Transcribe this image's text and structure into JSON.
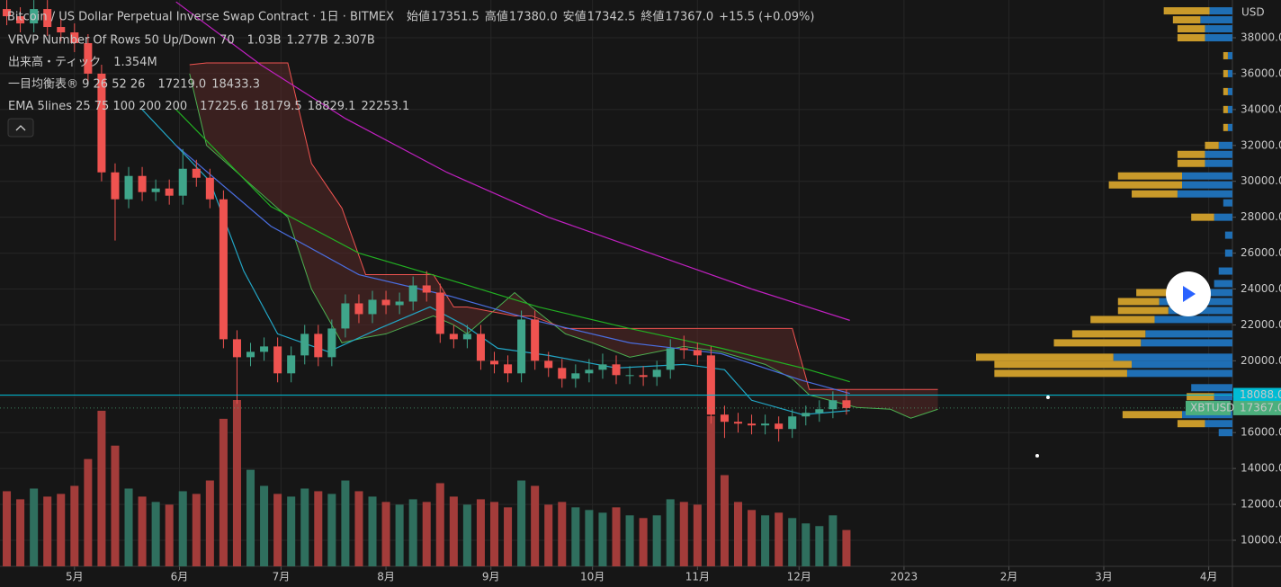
{
  "chart_data": {
    "type": "candlestick",
    "title": "Bitcoin / US Dollar Perpetual Inverse Swap Contract · 1日 · BITMEX",
    "ohlc_header": {
      "names": [
        "始値",
        "高値",
        "安値",
        "終値"
      ],
      "values": [
        17351.5,
        17380,
        17342.5,
        17367
      ],
      "value_labels": [
        "17351.5",
        "17380.0",
        "17342.5",
        "17367.0"
      ],
      "change": "+15.5 (+0.09%)",
      "color": "#4caf7d"
    },
    "indicators": [
      {
        "name": "VRVP Number Of Rows 50 Up/Down 70",
        "values": [
          1.03,
          1.277,
          2.307
        ],
        "value_labels": [
          "1.03B",
          "1.277B",
          "2.307B"
        ],
        "colors": [
          "#2f8ae0",
          "#e0b23a",
          "#555555"
        ]
      },
      {
        "name": "出来高・ティック",
        "values": [
          1.354
        ],
        "value_labels": [
          "1.354M"
        ],
        "colors": [
          "#4caf7d"
        ]
      },
      {
        "name": "一目均衡表® 9 26 52 26",
        "values": [
          17219,
          18433.3
        ],
        "value_labels": [
          "17219.0",
          "18433.3"
        ],
        "colors": [
          "#4caf50",
          "#ef5350"
        ]
      },
      {
        "name": "EMA 5lines 25 75 100 200 200",
        "values": [
          17225.6,
          18179.5,
          18829.1,
          22253.1
        ],
        "colors": [
          "#22a6c6",
          "#4a6ee0",
          "#22d022",
          "#d020d0"
        ]
      }
    ],
    "y_unit": "USD",
    "xlim": [
      -22,
      342
    ],
    "xticks": [
      {
        "value": 0,
        "label": "5月"
      },
      {
        "value": 31,
        "label": "6月"
      },
      {
        "value": 61,
        "label": "7月"
      },
      {
        "value": 92,
        "label": "8月"
      },
      {
        "value": 123,
        "label": "9月"
      },
      {
        "value": 153,
        "label": "10月"
      },
      {
        "value": 184,
        "label": "11月"
      },
      {
        "value": 214,
        "label": "12月"
      },
      {
        "value": 245,
        "label": "2023"
      },
      {
        "value": 276,
        "label": "2月"
      },
      {
        "value": 304,
        "label": "3月"
      },
      {
        "value": 335,
        "label": "4月"
      }
    ],
    "ylim": [
      8547,
      40104
    ],
    "yticks": [
      {
        "value": 10000,
        "label": "10000.0"
      },
      {
        "value": 12000,
        "label": "12000.0"
      },
      {
        "value": 14000,
        "label": "14000.0"
      },
      {
        "value": 16000,
        "label": "16000.0"
      },
      {
        "value": 18000,
        "label": "18000.0"
      },
      {
        "value": 20000,
        "label": "20000.0"
      },
      {
        "value": 22000,
        "label": "22000.0"
      },
      {
        "value": 24000,
        "label": "24000.0"
      },
      {
        "value": 26000,
        "label": "26000.0"
      },
      {
        "value": 28000,
        "label": "28000.0"
      },
      {
        "value": 30000,
        "label": "30000.0"
      },
      {
        "value": 32000,
        "label": "32000.0"
      },
      {
        "value": 34000,
        "label": "34000.0"
      },
      {
        "value": 36000,
        "label": "36000.0"
      },
      {
        "value": 38000,
        "label": "38000.0"
      }
    ],
    "grid": true,
    "candles": {
      "x": [
        -20,
        -16,
        -12,
        -8,
        -4,
        0,
        4,
        8,
        12,
        16,
        20,
        24,
        28,
        32,
        36,
        40,
        44,
        48,
        52,
        56,
        60,
        64,
        68,
        72,
        76,
        80,
        84,
        88,
        92,
        96,
        100,
        104,
        108,
        112,
        116,
        120,
        124,
        128,
        132,
        136,
        140,
        144,
        148,
        152,
        156,
        160,
        164,
        168,
        172,
        176,
        180,
        184,
        188,
        192,
        196,
        200,
        204,
        208,
        212,
        216,
        220,
        224,
        228
      ],
      "open": [
        39600,
        39200,
        38800,
        39600,
        38600,
        38300,
        37700,
        36000,
        30500,
        29000,
        30300,
        29400,
        29600,
        29200,
        30700,
        30200,
        29000,
        21200,
        20200,
        20500,
        20800,
        19300,
        20300,
        21500,
        20200,
        21800,
        23200,
        22600,
        23400,
        23100,
        23300,
        24200,
        23800,
        21500,
        21200,
        21500,
        20000,
        19800,
        19300,
        22300,
        20000,
        19600,
        19000,
        19300,
        19500,
        19800,
        19200,
        19200,
        19100,
        19500,
        20700,
        20600,
        20300,
        17000,
        16600,
        16500,
        16400,
        16500,
        16200,
        16900,
        17100,
        17300,
        17800
      ],
      "high": [
        40100,
        39700,
        40100,
        40100,
        39100,
        38800,
        38200,
        36500,
        31000,
        30800,
        30800,
        30100,
        30100,
        31800,
        31200,
        30700,
        29500,
        21700,
        21000,
        21300,
        21300,
        20800,
        22000,
        22000,
        22300,
        23700,
        23700,
        23900,
        23900,
        23800,
        24700,
        25000,
        24300,
        22000,
        22000,
        22000,
        20500,
        20300,
        22800,
        22800,
        20500,
        20100,
        19800,
        20100,
        20400,
        20300,
        19700,
        19700,
        20000,
        21200,
        21400,
        21000,
        20800,
        17500,
        17100,
        17000,
        17000,
        16900,
        17300,
        17500,
        17800,
        18300,
        18400
      ],
      "low": [
        38700,
        38300,
        38300,
        38100,
        37800,
        37200,
        35500,
        30000,
        26700,
        28500,
        28900,
        28900,
        28700,
        28700,
        29700,
        28500,
        20700,
        17600,
        19700,
        20000,
        18800,
        18800,
        19800,
        19700,
        19700,
        21300,
        22100,
        22100,
        22600,
        22600,
        22800,
        23300,
        21000,
        20700,
        20700,
        19500,
        19300,
        18800,
        18800,
        19500,
        19100,
        18500,
        18500,
        18800,
        19000,
        18700,
        18700,
        18600,
        18600,
        19000,
        20100,
        19800,
        16500,
        15700,
        16000,
        15900,
        15900,
        15500,
        15700,
        16400,
        16600,
        16800,
        17000
      ],
      "close": [
        39200,
        38800,
        39600,
        38600,
        38300,
        37700,
        36000,
        30500,
        29000,
        30300,
        29400,
        29600,
        29200,
        30700,
        30200,
        29000,
        21200,
        20200,
        20500,
        20800,
        19300,
        20300,
        21500,
        20200,
        21800,
        23200,
        22600,
        23400,
        23100,
        23300,
        24200,
        23800,
        21500,
        21200,
        21500,
        20000,
        19800,
        19300,
        22300,
        20000,
        19600,
        19000,
        19300,
        19500,
        19800,
        19200,
        19200,
        19100,
        19500,
        20700,
        20600,
        20300,
        17000,
        16600,
        16500,
        16400,
        16500,
        16200,
        16900,
        17100,
        17300,
        17800,
        17367
      ],
      "up_color": "#3fa58a",
      "down_color": "#ef5350"
    },
    "volume": {
      "values": [
        2.8,
        2.5,
        2.9,
        2.6,
        2.7,
        3.0,
        4.0,
        5.8,
        4.5,
        2.9,
        2.6,
        2.4,
        2.3,
        2.8,
        2.7,
        3.2,
        5.5,
        6.2,
        3.6,
        3.0,
        2.7,
        2.6,
        2.9,
        2.8,
        2.7,
        3.2,
        2.8,
        2.6,
        2.4,
        2.3,
        2.5,
        2.4,
        3.1,
        2.6,
        2.3,
        2.5,
        2.4,
        2.2,
        3.2,
        3.0,
        2.3,
        2.4,
        2.2,
        2.1,
        2.0,
        2.2,
        1.9,
        1.8,
        1.9,
        2.5,
        2.4,
        2.3,
        5.6,
        3.4,
        2.4,
        2.1,
        1.9,
        2.0,
        1.8,
        1.6,
        1.5,
        1.9,
        1.354
      ],
      "up_color": "#2f6f5e",
      "down_color": "#a33c3a"
    },
    "ema": [
      {
        "color": "#22a6c6",
        "x": [
          20,
          40,
          50,
          60,
          75,
          90,
          105,
          115,
          125,
          140,
          160,
          180,
          192,
          200,
          215,
          229
        ],
        "values": [
          34000,
          30000,
          25000,
          21500,
          20500,
          21800,
          23000,
          22000,
          20700,
          20300,
          19600,
          19800,
          19500,
          17800,
          17000,
          17225.6
        ]
      },
      {
        "color": "#4a6ee0",
        "x": [
          30,
          58,
          84,
          111,
          137,
          164,
          191,
          215,
          229
        ],
        "values": [
          32000,
          27500,
          24800,
          23600,
          22200,
          21000,
          20400,
          18900,
          18179.5
        ]
      },
      {
        "color": "#22b022",
        "x": [
          30,
          58,
          84,
          111,
          137,
          164,
          191,
          215,
          229
        ],
        "values": [
          34000,
          28600,
          26000,
          24500,
          23000,
          21800,
          20700,
          19600,
          18829.1
        ]
      },
      {
        "color": "#c020c0",
        "x": [
          30,
          55,
          80,
          110,
          140,
          170,
          200,
          229
        ],
        "values": [
          40000,
          36500,
          33500,
          30500,
          28000,
          26000,
          24000,
          22253.1
        ]
      }
    ],
    "ichimoku": {
      "x": [
        34,
        39,
        63,
        70,
        79,
        86,
        92,
        106,
        112,
        116,
        130,
        135,
        145,
        153,
        164,
        180,
        191,
        204,
        212,
        217,
        231,
        241,
        247,
        255
      ],
      "span_a": [
        36000,
        32000,
        28000,
        24000,
        21000,
        21300,
        21500,
        22500,
        22000,
        21500,
        23800,
        23000,
        21500,
        21000,
        20200,
        20800,
        20500,
        19800,
        19000,
        18100,
        17400,
        17300,
        16800,
        17300
      ],
      "span_b": [
        36500,
        36600,
        36600,
        31000,
        28500,
        24800,
        24800,
        24800,
        23000,
        23000,
        22500,
        22500,
        21800,
        21800,
        21800,
        21800,
        21800,
        21800,
        21800,
        18400,
        18400,
        18400,
        18400,
        18400
      ],
      "color_a": "#4caf50",
      "color_b": "#ef5350",
      "fill": "#5a2a28"
    },
    "volume_profile": {
      "prices": [
        16000,
        16500,
        17000,
        18000,
        18500,
        19300,
        19800,
        20200,
        21000,
        21500,
        22300,
        22800,
        23300,
        23800,
        24300,
        25000,
        26000,
        27000,
        28000,
        28800,
        29300,
        29800,
        30300,
        31000,
        31500,
        32000,
        33000,
        34000,
        35000,
        36000,
        37000,
        38000,
        38500,
        39000,
        39500
      ],
      "up": [
        15,
        30,
        55,
        20,
        45,
        115,
        110,
        130,
        100,
        95,
        85,
        70,
        80,
        65,
        20,
        15,
        8,
        8,
        20,
        10,
        60,
        55,
        55,
        30,
        30,
        15,
        5,
        5,
        5,
        5,
        5,
        30,
        30,
        35,
        25
      ],
      "down": [
        0,
        30,
        65,
        30,
        0,
        145,
        150,
        150,
        95,
        80,
        70,
        55,
        45,
        40,
        0,
        0,
        0,
        0,
        25,
        0,
        50,
        80,
        70,
        30,
        30,
        15,
        5,
        5,
        5,
        5,
        5,
        30,
        30,
        30,
        50
      ],
      "up_color": "#1f6fb5",
      "down_color": "#c99a2a"
    },
    "price_lines": [
      {
        "value": 18088,
        "label": "18088.0",
        "color": "#00bcd4"
      },
      {
        "name": "XBTUSD",
        "value": 17367,
        "label": "17367.0",
        "color": "#4caf7d"
      }
    ]
  }
}
